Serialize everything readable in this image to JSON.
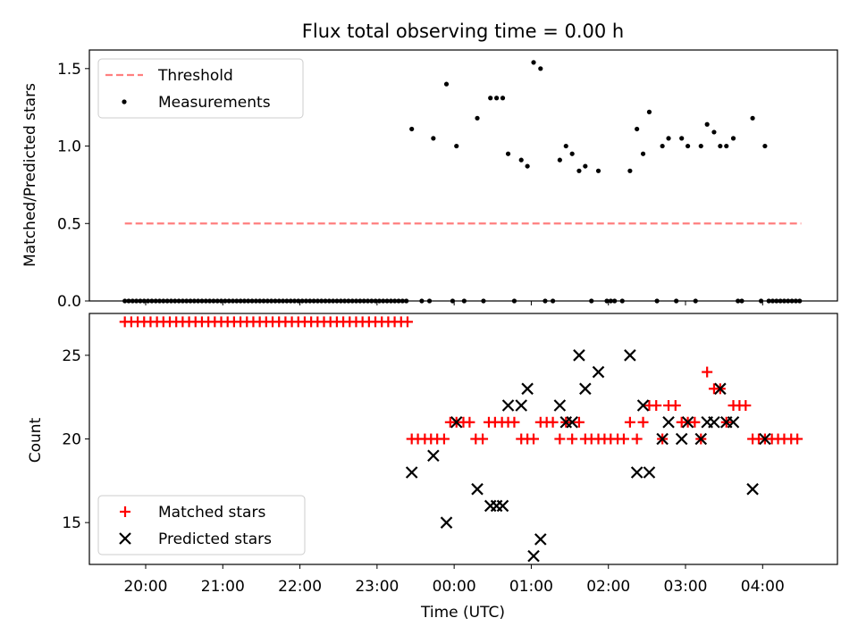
{
  "chart_data": [
    {
      "type": "scatter",
      "title": "Flux total observing time = 0.00 h",
      "ylabel": "Matched/Predicted stars",
      "ylim": [
        0,
        1.62
      ],
      "yticks": [
        "0.0",
        "0.5",
        "1.0",
        "1.5"
      ],
      "ytick_values": [
        0,
        0.5,
        1.0,
        1.5
      ],
      "xlim_hours": [
        19.27,
        28.97
      ],
      "legend_position": "upper-left",
      "threshold": {
        "name": "Threshold",
        "value": 0.5,
        "x_start": 19.73,
        "x_end": 28.5,
        "color": "#ff7f7f",
        "style": "dashed"
      },
      "measurements": {
        "name": "Measurements",
        "color": "#000000",
        "zero_x": [
          19.73,
          19.78,
          19.83,
          19.88,
          19.93,
          19.98,
          20.03,
          20.08,
          20.13,
          20.18,
          20.23,
          20.28,
          20.33,
          20.38,
          20.43,
          20.48,
          20.53,
          20.58,
          20.63,
          20.68,
          20.73,
          20.78,
          20.83,
          20.88,
          20.93,
          20.98,
          21.03,
          21.08,
          21.13,
          21.18,
          21.23,
          21.28,
          21.33,
          21.38,
          21.43,
          21.48,
          21.53,
          21.58,
          21.63,
          21.68,
          21.73,
          21.78,
          21.83,
          21.88,
          21.93,
          21.98,
          22.03,
          22.08,
          22.13,
          22.18,
          22.23,
          22.28,
          22.33,
          22.38,
          22.43,
          22.48,
          22.53,
          22.58,
          22.63,
          22.68,
          22.73,
          22.78,
          22.83,
          22.88,
          22.93,
          22.98,
          23.03,
          23.08,
          23.13,
          23.18,
          23.23,
          23.28,
          23.33,
          23.38,
          23.58,
          23.68,
          23.98,
          24.13,
          24.38,
          24.78,
          25.18,
          25.28,
          25.78,
          25.98,
          26.03,
          26.08,
          26.18,
          26.63,
          26.88,
          27.13,
          27.68,
          27.73,
          27.98,
          28.08,
          28.13,
          28.18,
          28.23,
          28.28,
          28.33,
          28.38,
          28.43,
          28.48
        ],
        "points": [
          [
            23.45,
            1.11
          ],
          [
            23.73,
            1.05
          ],
          [
            23.9,
            1.4
          ],
          [
            24.03,
            1.0
          ],
          [
            24.3,
            1.18
          ],
          [
            24.47,
            1.31
          ],
          [
            24.55,
            1.31
          ],
          [
            24.63,
            1.31
          ],
          [
            24.7,
            0.95
          ],
          [
            24.87,
            0.91
          ],
          [
            24.95,
            0.87
          ],
          [
            25.03,
            1.54
          ],
          [
            25.12,
            1.5
          ],
          [
            25.37,
            0.91
          ],
          [
            25.45,
            1.0
          ],
          [
            25.53,
            0.95
          ],
          [
            25.62,
            0.84
          ],
          [
            25.7,
            0.87
          ],
          [
            25.87,
            0.84
          ],
          [
            26.28,
            0.84
          ],
          [
            26.37,
            1.11
          ],
          [
            26.45,
            0.95
          ],
          [
            26.53,
            1.22
          ],
          [
            26.7,
            1.0
          ],
          [
            26.78,
            1.05
          ],
          [
            26.95,
            1.05
          ],
          [
            27.03,
            1.0
          ],
          [
            27.2,
            1.0
          ],
          [
            27.28,
            1.14
          ],
          [
            27.37,
            1.09
          ],
          [
            27.45,
            1.0
          ],
          [
            27.53,
            1.0
          ],
          [
            27.62,
            1.05
          ],
          [
            27.87,
            1.18
          ],
          [
            28.03,
            1.0
          ]
        ]
      }
    },
    {
      "type": "scatter",
      "xlabel": "Time (UTC)",
      "ylabel": "Count",
      "ylim": [
        12.5,
        27.5
      ],
      "yticks": [
        "15",
        "20",
        "25"
      ],
      "ytick_values": [
        15,
        20,
        25
      ],
      "xlim_hours": [
        19.27,
        28.97
      ],
      "xticks": [
        "20:00",
        "21:00",
        "22:00",
        "23:00",
        "00:00",
        "01:00",
        "02:00",
        "03:00",
        "04:00"
      ],
      "xtick_hours": [
        20,
        21,
        22,
        23,
        24,
        25,
        26,
        27,
        28
      ],
      "legend_position": "lower-left",
      "series": [
        {
          "name": "Matched stars",
          "marker": "plus",
          "color": "#ff0000",
          "full_range": [
            19.73,
            23.43
          ],
          "full_count": 27,
          "points": [
            [
              23.45,
              20
            ],
            [
              23.53,
              20
            ],
            [
              23.62,
              20
            ],
            [
              23.7,
              20
            ],
            [
              23.78,
              20
            ],
            [
              23.87,
              20
            ],
            [
              23.95,
              21
            ],
            [
              24.03,
              21
            ],
            [
              24.12,
              21
            ],
            [
              24.2,
              21
            ],
            [
              24.28,
              20
            ],
            [
              24.37,
              20
            ],
            [
              24.45,
              21
            ],
            [
              24.53,
              21
            ],
            [
              24.62,
              21
            ],
            [
              24.7,
              21
            ],
            [
              24.78,
              21
            ],
            [
              24.87,
              20
            ],
            [
              24.95,
              20
            ],
            [
              25.03,
              20
            ],
            [
              25.12,
              21
            ],
            [
              25.2,
              21
            ],
            [
              25.28,
              21
            ],
            [
              25.37,
              20
            ],
            [
              25.45,
              21
            ],
            [
              25.53,
              20
            ],
            [
              25.62,
              21
            ],
            [
              25.7,
              20
            ],
            [
              25.78,
              20
            ],
            [
              25.87,
              20
            ],
            [
              25.95,
              20
            ],
            [
              26.03,
              20
            ],
            [
              26.12,
              20
            ],
            [
              26.2,
              20
            ],
            [
              26.28,
              21
            ],
            [
              26.37,
              20
            ],
            [
              26.45,
              21
            ],
            [
              26.53,
              22
            ],
            [
              26.62,
              22
            ],
            [
              26.7,
              20
            ],
            [
              26.78,
              22
            ],
            [
              26.87,
              22
            ],
            [
              26.95,
              21
            ],
            [
              27.03,
              21
            ],
            [
              27.12,
              21
            ],
            [
              27.2,
              20
            ],
            [
              27.28,
              24
            ],
            [
              27.37,
              23
            ],
            [
              27.45,
              23
            ],
            [
              27.53,
              21
            ],
            [
              27.62,
              22
            ],
            [
              27.7,
              22
            ],
            [
              27.78,
              22
            ],
            [
              27.87,
              20
            ],
            [
              27.95,
              20
            ],
            [
              28.03,
              20
            ],
            [
              28.12,
              20
            ],
            [
              28.2,
              20
            ],
            [
              28.28,
              20
            ],
            [
              28.37,
              20
            ],
            [
              28.45,
              20
            ]
          ]
        },
        {
          "name": "Predicted stars",
          "marker": "x",
          "color": "#000000",
          "points": [
            [
              23.45,
              18
            ],
            [
              23.73,
              19
            ],
            [
              23.9,
              15
            ],
            [
              24.03,
              21
            ],
            [
              24.3,
              17
            ],
            [
              24.47,
              16
            ],
            [
              24.55,
              16
            ],
            [
              24.63,
              16
            ],
            [
              24.7,
              22
            ],
            [
              24.87,
              22
            ],
            [
              24.95,
              23
            ],
            [
              25.03,
              13
            ],
            [
              25.12,
              14
            ],
            [
              25.37,
              22
            ],
            [
              25.45,
              21
            ],
            [
              25.53,
              21
            ],
            [
              25.62,
              25
            ],
            [
              25.7,
              23
            ],
            [
              25.87,
              24
            ],
            [
              26.28,
              25
            ],
            [
              26.37,
              18
            ],
            [
              26.45,
              22
            ],
            [
              26.53,
              18
            ],
            [
              26.7,
              20
            ],
            [
              26.78,
              21
            ],
            [
              26.95,
              20
            ],
            [
              27.03,
              21
            ],
            [
              27.2,
              20
            ],
            [
              27.28,
              21
            ],
            [
              27.37,
              21
            ],
            [
              27.45,
              23
            ],
            [
              27.53,
              21
            ],
            [
              27.62,
              21
            ],
            [
              27.87,
              17
            ],
            [
              28.03,
              20
            ]
          ]
        }
      ]
    }
  ]
}
